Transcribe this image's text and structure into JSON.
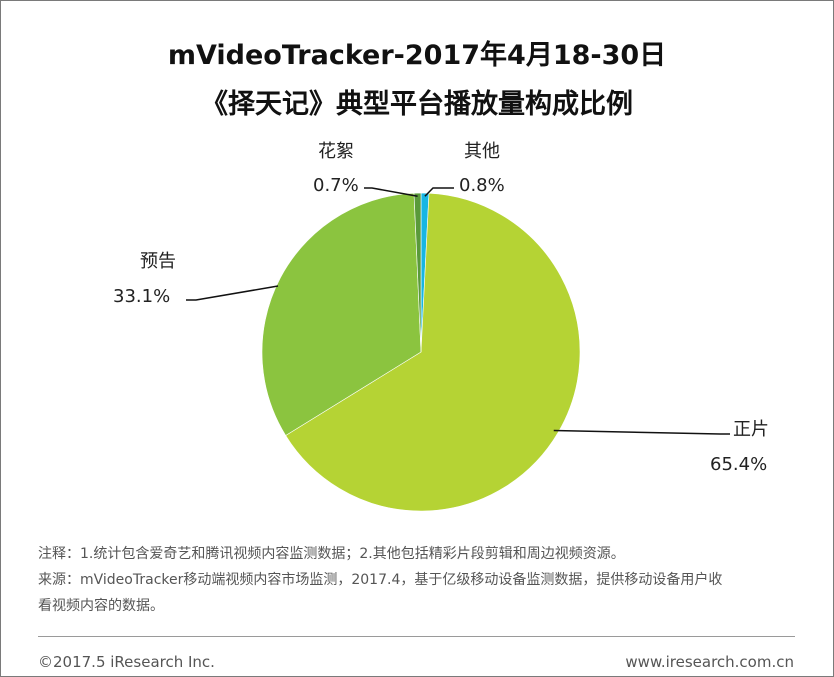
{
  "header": {
    "title_line1": "mVideoTracker-2017年4月18-30日",
    "title_line2": "《择天记》典型平台播放量构成比例"
  },
  "chart_data": {
    "type": "pie",
    "title": "mVideoTracker-2017年4月18-30日《择天记》典型平台播放量构成比例",
    "slices": [
      {
        "label": "正片",
        "value": 65.4,
        "display": "65.4%",
        "color": "#b5d334"
      },
      {
        "label": "预告",
        "value": 33.1,
        "display": "33.1%",
        "color": "#8bc43f"
      },
      {
        "label": "花絮",
        "value": 0.7,
        "display": "0.7%",
        "color": "#5a9a3a"
      },
      {
        "label": "其他",
        "value": 0.8,
        "display": "0.8%",
        "color": "#17b6e3"
      }
    ]
  },
  "notes": {
    "line1": "注释：1.统计包含爱奇艺和腾讯视频内容监测数据；2.其他包括精彩片段剪辑和周边视频资源。",
    "line2": "来源：mVideoTracker移动端视频内容市场监测，2017.4，基于亿级移动设备监测数据，提供移动设备用户收",
    "line3": "看视频内容的数据。"
  },
  "footer": {
    "copyright": "©2017.5 iResearch Inc.",
    "website": "www.iresearch.com.cn"
  }
}
